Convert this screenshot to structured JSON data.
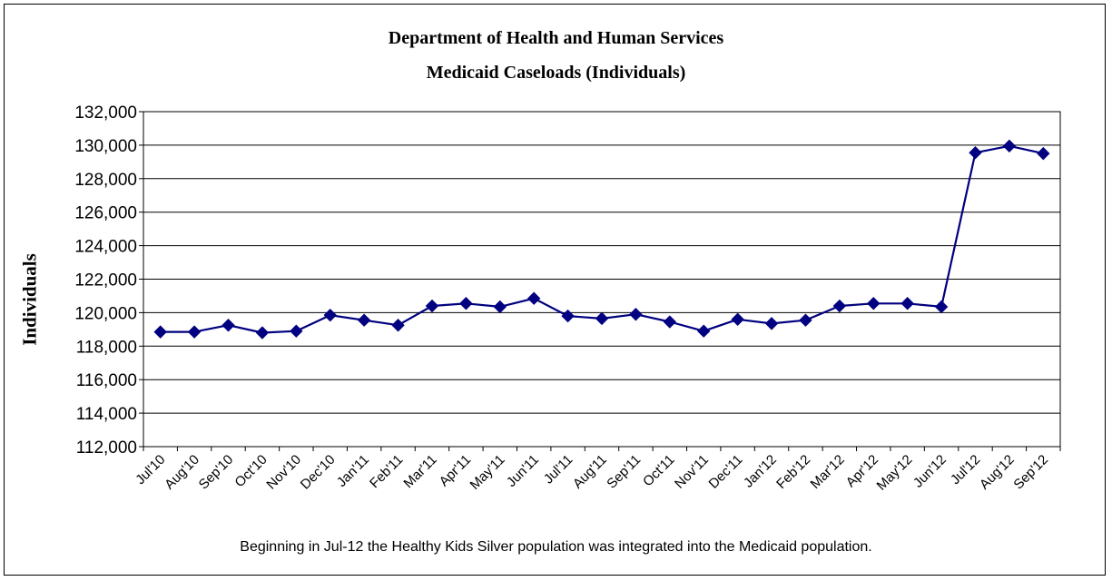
{
  "chart_data": {
    "type": "line",
    "title": "Department of Health and Human Services",
    "subtitle": "Medicaid Caseloads (Individuals)",
    "ylabel": "Individuals",
    "xlabel": "",
    "footnote": "Beginning in Jul-12 the Healthy Kids Silver population was integrated into the Medicaid population.",
    "ylim": [
      112000,
      132000
    ],
    "yticks": [
      "112,000",
      "114,000",
      "116,000",
      "118,000",
      "120,000",
      "122,000",
      "124,000",
      "126,000",
      "128,000",
      "130,000",
      "132,000"
    ],
    "grid": true,
    "legend": "none",
    "line_color": "#000080",
    "marker": "diamond",
    "categories": [
      "Jul'10",
      "Aug'10",
      "Sep'10",
      "Oct'10",
      "Nov'10",
      "Dec'10",
      "Jan'11",
      "Feb'11",
      "Mar'11",
      "Apr'11",
      "May'11",
      "Jun'11",
      "Jul'11",
      "Aug'11",
      "Sep'11",
      "Oct'11",
      "Nov'11",
      "Dec'11",
      "Jan'12",
      "Feb'12",
      "Mar'12",
      "Apr'12",
      "May'12",
      "Jun'12",
      "Jul'12",
      "Aug'12",
      "Sep'12"
    ],
    "values": [
      118850,
      118850,
      119250,
      118800,
      118900,
      119850,
      119550,
      119250,
      120400,
      120550,
      120350,
      120850,
      119800,
      119650,
      119900,
      119450,
      118900,
      119600,
      119350,
      119550,
      120400,
      120550,
      120550,
      120350,
      129550,
      129950,
      129500
    ]
  }
}
